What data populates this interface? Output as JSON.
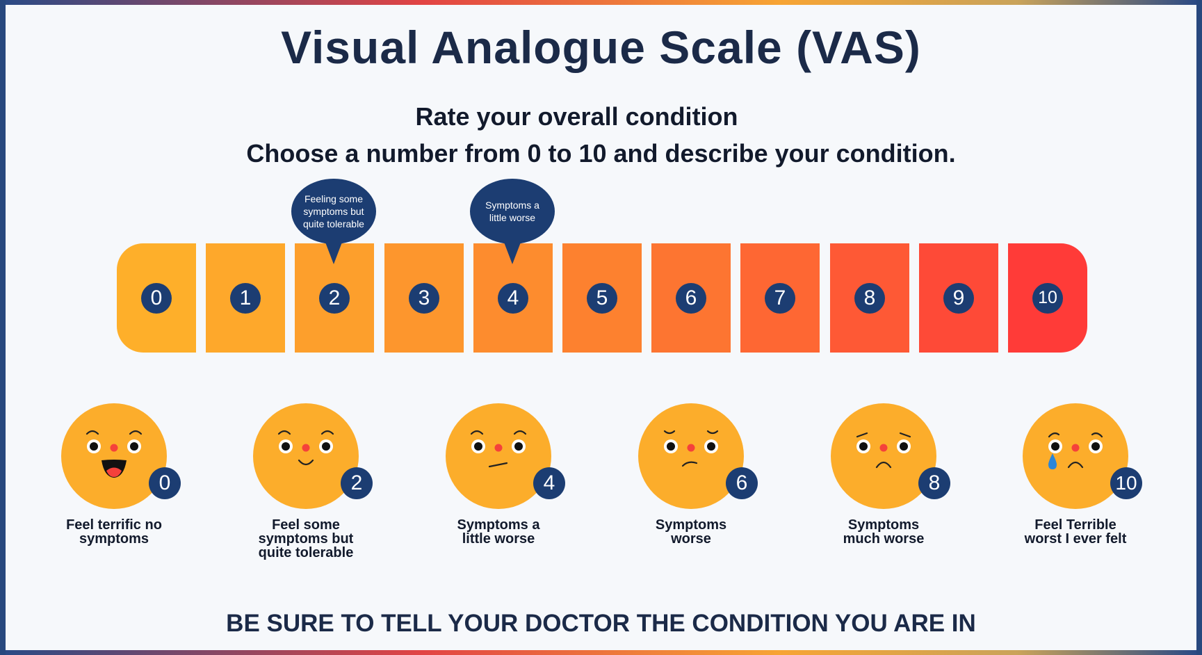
{
  "title": "Visual Analogue Scale (VAS)",
  "subtitle_line1": "Rate your overall condition",
  "subtitle_line2": "Choose a number from 0 to 10 and describe your condition.",
  "scale": {
    "numbers": [
      "0",
      "1",
      "2",
      "3",
      "4",
      "5",
      "6",
      "7",
      "8",
      "9",
      "10"
    ],
    "colors": [
      "#feaf2a",
      "#fea82b",
      "#fd9f2c",
      "#fd962d",
      "#fd8c2e",
      "#fd812f",
      "#fd7531",
      "#fe6733",
      "#fe5935",
      "#fe4a37",
      "#ff3b38"
    ]
  },
  "callouts": [
    {
      "text": "Feeling some symptoms but quite tolerable",
      "at": "2"
    },
    {
      "text": "Symptoms a little worse",
      "at": "4"
    }
  ],
  "faces": [
    {
      "score": "0",
      "label": "Feel terrific no symptoms",
      "mood": "terrific"
    },
    {
      "score": "2",
      "label": "Feel some symptoms but quite tolerable",
      "mood": "smile"
    },
    {
      "score": "4",
      "label": "Symptoms a little worse",
      "mood": "neutral"
    },
    {
      "score": "6",
      "label": "Symptoms worse",
      "mood": "frown"
    },
    {
      "score": "8",
      "label": "Symptoms much worse",
      "mood": "sad"
    },
    {
      "score": "10",
      "label": "Feel Terrible worst I ever felt",
      "mood": "crying"
    }
  ],
  "footer": "BE SURE TO TELL YOUR DOCTOR THE CONDITION YOU ARE IN",
  "colors": {
    "navy": "#1c3d72",
    "face": "#fcad2b",
    "nose": "#f5413b",
    "tear": "#2b86d9",
    "text": "#1b2a48",
    "background": "#f6f8fb"
  }
}
